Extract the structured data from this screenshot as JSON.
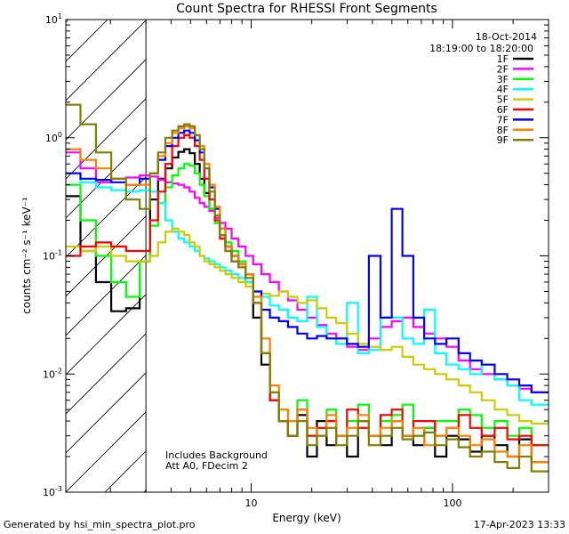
{
  "chart_data": {
    "type": "line",
    "title": "Count Spectra for RHESSI Front Segments",
    "xlabel": "Energy (keV)",
    "ylabel": "counts cm⁻² s⁻¹ keV⁻¹",
    "xscale": "log",
    "yscale": "log",
    "xlim": [
      1.2,
      300
    ],
    "ylim": [
      0.001,
      10
    ],
    "x_ticks": [
      {
        "value": 10,
        "label": "10"
      },
      {
        "value": 100,
        "label": "100"
      }
    ],
    "y_ticks": [
      {
        "value": 0.001,
        "base": "10",
        "exp": "-3"
      },
      {
        "value": 0.01,
        "base": "10",
        "exp": "-2"
      },
      {
        "value": 0.1,
        "base": "10",
        "exp": "-1"
      },
      {
        "value": 1,
        "base": "10",
        "exp": "0"
      },
      {
        "value": 10,
        "base": "10",
        "exp": "1"
      }
    ],
    "excluded_region_keV": [
      1.2,
      3
    ],
    "annotations": {
      "date": "18-Oct-2014",
      "time_range": "18:19:00 to 18:20:00",
      "note1": "Includes Background",
      "note2": "Att A0, FDecim 2"
    },
    "energy_bins_keV": [
      1.3,
      1.55,
      1.85,
      2.2,
      2.6,
      3.0,
      3.3,
      3.6,
      3.9,
      4.2,
      4.5,
      4.8,
      5.1,
      5.4,
      5.7,
      6.0,
      6.4,
      6.8,
      7.2,
      7.7,
      8.3,
      9.0,
      9.8,
      10.7,
      11.8,
      13.0,
      14.5,
      16.0,
      18.0,
      20.0,
      22.5,
      25.0,
      28.0,
      32.0,
      36.0,
      41.0,
      47.0,
      53.0,
      60.0,
      68.0,
      77.0,
      87.0,
      100.0,
      115.0,
      130.0,
      150.0,
      175.0,
      200.0,
      230.0,
      265.0
    ],
    "series": [
      {
        "name": "1F",
        "color": "#000000",
        "values": [
          0.32,
          0.11,
          0.06,
          0.034,
          0.036,
          0.09,
          0.3,
          0.45,
          0.55,
          0.68,
          0.76,
          0.8,
          0.74,
          0.6,
          0.45,
          0.34,
          0.25,
          0.19,
          0.15,
          0.12,
          0.1,
          0.085,
          0.06,
          0.03,
          0.012,
          0.006,
          0.004,
          0.003,
          0.0045,
          0.002,
          0.004,
          0.0025,
          0.003,
          0.002,
          0.004,
          0.003,
          0.0025,
          0.004,
          0.003,
          0.0025,
          0.0035,
          0.002,
          0.003,
          0.0028,
          0.0022,
          0.003,
          0.0025,
          0.002,
          0.0028,
          0.0018
        ]
      },
      {
        "name": "2F",
        "color": "#ff00ff",
        "values": [
          0.75,
          0.55,
          0.42,
          0.45,
          0.46,
          0.48,
          0.47,
          0.44,
          0.42,
          0.41,
          0.4,
          0.38,
          0.35,
          0.31,
          0.28,
          0.26,
          0.24,
          0.21,
          0.19,
          0.17,
          0.14,
          0.12,
          0.1,
          0.085,
          0.07,
          0.06,
          0.05,
          0.042,
          0.035,
          0.03,
          0.026,
          0.022,
          0.02,
          0.017,
          0.016,
          0.02,
          0.025,
          0.028,
          0.03,
          0.025,
          0.022,
          0.02,
          0.017,
          0.013,
          0.011,
          0.01,
          0.009,
          0.008,
          0.0075,
          0.007
        ]
      },
      {
        "name": "3F",
        "color": "#00ff00",
        "values": [
          0.4,
          0.2,
          0.1,
          0.06,
          0.045,
          0.09,
          0.18,
          0.28,
          0.38,
          0.48,
          0.55,
          0.6,
          0.58,
          0.5,
          0.4,
          0.32,
          0.25,
          0.19,
          0.15,
          0.13,
          0.11,
          0.09,
          0.07,
          0.04,
          0.015,
          0.007,
          0.005,
          0.004,
          0.006,
          0.003,
          0.0035,
          0.005,
          0.003,
          0.004,
          0.0055,
          0.003,
          0.004,
          0.0045,
          0.0055,
          0.003,
          0.0035,
          0.004,
          0.004,
          0.005,
          0.0045,
          0.0035,
          0.004,
          0.003,
          0.0035,
          0.0025
        ]
      },
      {
        "name": "4F",
        "color": "#00ffff",
        "values": [
          0.5,
          0.42,
          0.38,
          0.36,
          0.35,
          0.36,
          0.35,
          0.28,
          0.2,
          0.16,
          0.14,
          0.13,
          0.12,
          0.11,
          0.1,
          0.095,
          0.09,
          0.085,
          0.08,
          0.075,
          0.07,
          0.065,
          0.06,
          0.05,
          0.045,
          0.038,
          0.035,
          0.03,
          0.028,
          0.045,
          0.025,
          0.02,
          0.018,
          0.04,
          0.015,
          0.016,
          0.03,
          0.03,
          0.02,
          0.018,
          0.035,
          0.015,
          0.012,
          0.011,
          0.01,
          0.012,
          0.009,
          0.008,
          0.006,
          0.0055
        ]
      },
      {
        "name": "5F",
        "color": "#cccc00",
        "values": [
          0.12,
          0.11,
          0.12,
          0.1,
          0.09,
          0.09,
          0.1,
          0.13,
          0.16,
          0.17,
          0.16,
          0.15,
          0.13,
          0.12,
          0.1,
          0.09,
          0.085,
          0.08,
          0.075,
          0.07,
          0.065,
          0.06,
          0.055,
          0.05,
          0.048,
          0.046,
          0.05,
          0.045,
          0.04,
          0.042,
          0.036,
          0.03,
          0.027,
          0.022,
          0.018,
          0.017,
          0.016,
          0.017,
          0.014,
          0.012,
          0.011,
          0.01,
          0.009,
          0.008,
          0.007,
          0.006,
          0.005,
          0.0045,
          0.004,
          0.0038
        ]
      },
      {
        "name": "6F",
        "color": "#ff0000",
        "values": [
          0.1,
          0.12,
          0.13,
          0.12,
          0.11,
          0.11,
          0.2,
          0.35,
          0.6,
          0.85,
          1.0,
          1.05,
          1.0,
          0.85,
          0.65,
          0.45,
          0.3,
          0.2,
          0.14,
          0.11,
          0.09,
          0.08,
          0.07,
          0.04,
          0.015,
          0.006,
          0.004,
          0.003,
          0.005,
          0.003,
          0.0035,
          0.004,
          0.003,
          0.005,
          0.0035,
          0.003,
          0.0045,
          0.005,
          0.003,
          0.004,
          0.004,
          0.003,
          0.0035,
          0.0045,
          0.0035,
          0.003,
          0.0035,
          0.0028,
          0.003,
          0.0025
        ]
      },
      {
        "name": "7F",
        "color": "#0000ff",
        "values": [
          0.5,
          0.45,
          0.44,
          0.42,
          0.4,
          0.45,
          0.5,
          0.65,
          0.85,
          1.0,
          1.1,
          1.15,
          1.1,
          0.95,
          0.75,
          0.55,
          0.38,
          0.25,
          0.17,
          0.12,
          0.1,
          0.085,
          0.07,
          0.05,
          0.035,
          0.03,
          0.028,
          0.025,
          0.022,
          0.02,
          0.021,
          0.02,
          0.02,
          0.018,
          0.017,
          0.1,
          0.03,
          0.25,
          0.1,
          0.03,
          0.02,
          0.018,
          0.02,
          0.015,
          0.013,
          0.012,
          0.01,
          0.009,
          0.008,
          0.007
        ]
      },
      {
        "name": "8F",
        "color": "#ff8000",
        "values": [
          0.8,
          0.65,
          0.55,
          0.45,
          0.4,
          0.4,
          0.5,
          0.7,
          0.9,
          1.1,
          1.2,
          1.25,
          1.2,
          1.05,
          0.85,
          0.6,
          0.4,
          0.26,
          0.17,
          0.12,
          0.1,
          0.085,
          0.07,
          0.045,
          0.02,
          0.008,
          0.005,
          0.004,
          0.005,
          0.0035,
          0.003,
          0.0045,
          0.003,
          0.0035,
          0.0045,
          0.003,
          0.0035,
          0.004,
          0.003,
          0.0035,
          0.0025,
          0.003,
          0.0035,
          0.003,
          0.0025,
          0.0028,
          0.0022,
          0.002,
          0.0025,
          0.0018
        ]
      },
      {
        "name": "9F",
        "color": "#808000",
        "values": [
          1.9,
          1.3,
          0.75,
          0.45,
          0.3,
          0.25,
          0.5,
          0.75,
          1.0,
          1.15,
          1.25,
          1.3,
          1.25,
          1.05,
          0.8,
          0.55,
          0.35,
          0.22,
          0.15,
          0.11,
          0.09,
          0.08,
          0.065,
          0.04,
          0.015,
          0.007,
          0.004,
          0.003,
          0.004,
          0.0025,
          0.003,
          0.0035,
          0.0025,
          0.003,
          0.004,
          0.0025,
          0.003,
          0.0035,
          0.0028,
          0.003,
          0.0032,
          0.0025,
          0.0028,
          0.0024,
          0.002,
          0.0022,
          0.0018,
          0.0016,
          0.002,
          0.0015
        ]
      }
    ]
  },
  "footer": {
    "left": "Generated by hsi_min_spectra_plot.pro",
    "right": "17-Apr-2023 13:33"
  }
}
